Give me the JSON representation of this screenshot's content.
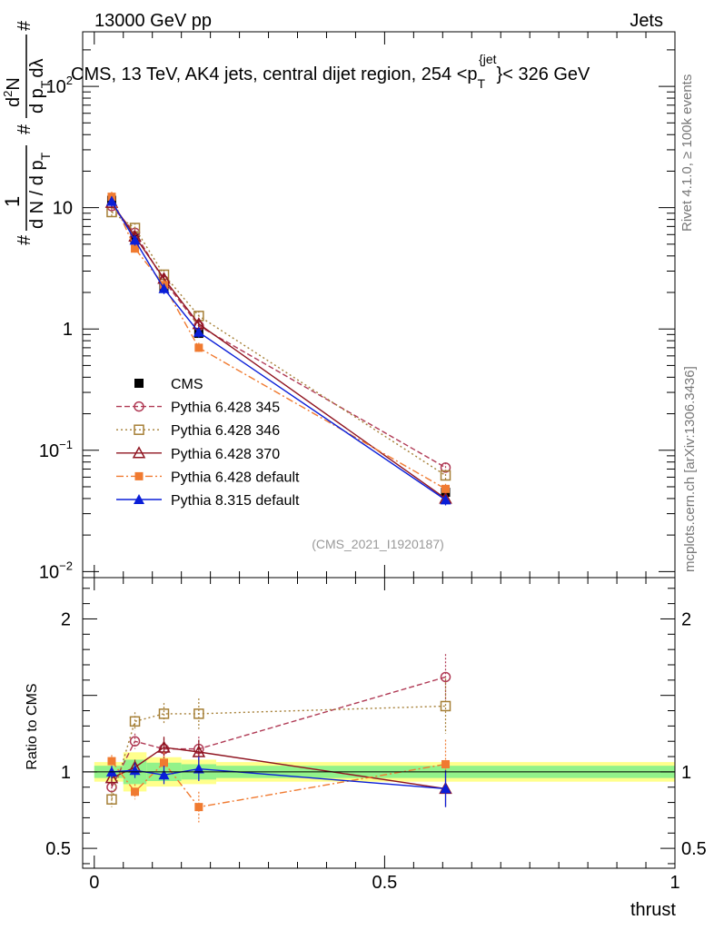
{
  "header": {
    "energy": "13000 GeV pp",
    "category": "Jets"
  },
  "side_labels": {
    "rivet": "Rivet 4.1.0, ≥ 100k events",
    "mcplots": "mcplots.cern.ch [arXiv:1306.3436]"
  },
  "analysis_tag": "(CMS_2021_I1920187)",
  "chart_data": {
    "type": "line",
    "title": "CMS, 13 TeV, AK4 jets, central dijet region, 254 <p_T^{jet}< 326 GeV",
    "title_parts": [
      "CMS, 13 TeV, AK4 jets, central dijet region, 254 <p",
      "T",
      "{jet",
      "}< 326 GeV"
    ],
    "xlabel": "thrust",
    "ylabel_main": "1/(dN/dpT) d2N/(dpT dlambda)",
    "ylabel_parts": [
      "#",
      "1",
      "d N / d p",
      "T",
      "#",
      "d",
      "2",
      "N",
      "d p",
      "T",
      "dλ",
      "#"
    ],
    "ylabel_ratio": "Ratio to CMS",
    "xlim": [
      -0.02,
      1.0
    ],
    "ylim_main_log10": [
      -2.05,
      2.45
    ],
    "ylim_ratio": [
      0.37,
      2.27
    ],
    "xticks": [
      "0",
      "0.5",
      "1"
    ],
    "yticks_main": [
      "10^-2",
      "10^-1",
      "1",
      "10",
      "10^2"
    ],
    "yticks_main_labels": [
      {
        "base": "10",
        "exp": "−2"
      },
      {
        "base": "10",
        "exp": "−1"
      },
      {
        "base": "1",
        "exp": ""
      },
      {
        "base": "10",
        "exp": ""
      },
      {
        "base": "10",
        "exp": "2"
      }
    ],
    "yticks_ratio": [
      "0.5",
      "1",
      "2"
    ],
    "bins": [
      [
        0.0,
        0.05
      ],
      [
        0.05,
        0.09
      ],
      [
        0.09,
        0.15
      ],
      [
        0.15,
        0.21
      ],
      [
        0.21,
        1.0
      ]
    ],
    "x": [
      0.03,
      0.07,
      0.12,
      0.18,
      0.605
    ],
    "data": {
      "name": "CMS",
      "values": [
        11.5,
        5.6,
        2.2,
        0.92,
        0.045
      ],
      "rel_err": [
        0.04,
        0.08,
        0.06,
        0.05,
        0.04
      ]
    },
    "series": [
      {
        "name": "Pythia 6.428 345",
        "color": "#b03a55",
        "marker": "open-circle",
        "dash": "6,3",
        "values": [
          10.3,
          6.2,
          2.5,
          1.06,
          0.072
        ],
        "ratio": [
          0.9,
          1.2,
          1.15,
          1.15,
          1.62
        ],
        "ratio_err": [
          0.05,
          0.05,
          0.07,
          0.08,
          0.15
        ]
      },
      {
        "name": "Pythia 6.428 346",
        "color": "#a57f36",
        "marker": "open-square",
        "dash": "2,3",
        "values": [
          9.2,
          6.8,
          2.8,
          1.28,
          0.062
        ],
        "ratio": [
          0.82,
          1.33,
          1.38,
          1.38,
          1.43
        ],
        "ratio_err": [
          0.05,
          0.06,
          0.07,
          0.1,
          0.18
        ]
      },
      {
        "name": "Pythia 6.428 370",
        "color": "#8f1420",
        "marker": "open-triangle",
        "dash": "",
        "values": [
          11.0,
          5.8,
          2.6,
          1.1,
          0.04
        ],
        "ratio": [
          0.96,
          1.03,
          1.16,
          1.13,
          0.89
        ],
        "ratio_err": [
          0.05,
          0.05,
          0.07,
          0.08,
          0.12
        ]
      },
      {
        "name": "Pythia 6.428 default",
        "color": "#f07a30",
        "marker": "filled-square",
        "dash": "8,3,2,3",
        "values": [
          12.3,
          4.6,
          2.3,
          0.7,
          0.048
        ],
        "ratio": [
          1.07,
          0.87,
          1.06,
          0.77,
          1.05
        ],
        "ratio_err": [
          0.04,
          0.05,
          0.07,
          0.1,
          0.16
        ]
      },
      {
        "name": "Pythia 8.315 default",
        "color": "#0a1ed8",
        "marker": "filled-triangle",
        "dash": "",
        "values": [
          11.3,
          5.4,
          2.15,
          0.94,
          0.039
        ],
        "ratio": [
          1.0,
          1.01,
          0.98,
          1.02,
          0.89
        ],
        "ratio_err": [
          0.04,
          0.05,
          0.06,
          0.08,
          0.12
        ]
      }
    ]
  }
}
